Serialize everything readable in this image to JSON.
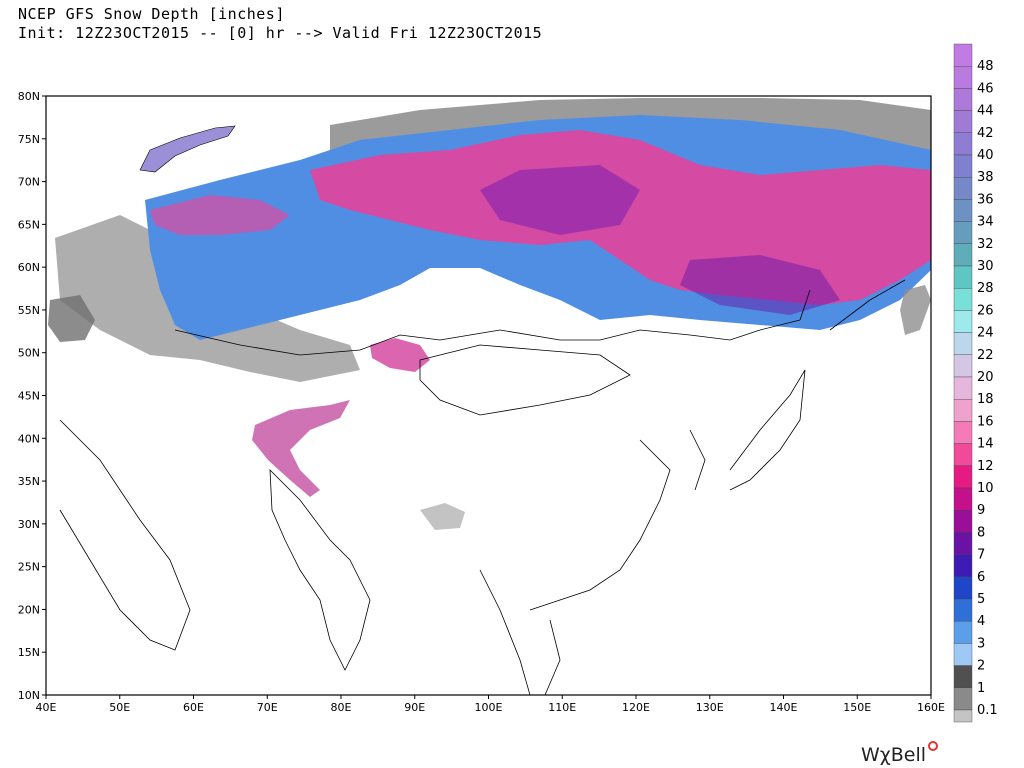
{
  "header": {
    "title": "NCEP GFS Snow Depth [inches]",
    "subtitle": "Init: 12Z23OCT2015 -- [0] hr --> Valid Fri 12Z23OCT2015"
  },
  "map": {
    "lon_range": [
      40,
      160
    ],
    "lat_range": [
      10,
      80
    ],
    "lat_ticks": [
      "80N",
      "75N",
      "70N",
      "65N",
      "60N",
      "55N",
      "50N",
      "45N",
      "40N",
      "35N",
      "30N",
      "25N",
      "20N",
      "15N",
      "10N"
    ],
    "lon_ticks": [
      "40E",
      "50E",
      "60E",
      "70E",
      "80E",
      "90E",
      "100E",
      "110E",
      "120E",
      "130E",
      "140E",
      "150E",
      "160E"
    ]
  },
  "colorbar": {
    "levels": [
      {
        "label": "48",
        "color": "#c17ce4"
      },
      {
        "label": "46",
        "color": "#b97bdf"
      },
      {
        "label": "44",
        "color": "#ae7ad9"
      },
      {
        "label": "42",
        "color": "#a07bd6"
      },
      {
        "label": "40",
        "color": "#8f7dd3"
      },
      {
        "label": "38",
        "color": "#7f80cf"
      },
      {
        "label": "36",
        "color": "#7688c8"
      },
      {
        "label": "34",
        "color": "#6d91c2"
      },
      {
        "label": "32",
        "color": "#669dbd"
      },
      {
        "label": "30",
        "color": "#5fadb9"
      },
      {
        "label": "28",
        "color": "#5fc7c3"
      },
      {
        "label": "26",
        "color": "#78dfd9"
      },
      {
        "label": "24",
        "color": "#9de9ec"
      },
      {
        "label": "22",
        "color": "#bcd7ec"
      },
      {
        "label": "20",
        "color": "#d4c7e6"
      },
      {
        "label": "18",
        "color": "#e6b7dc"
      },
      {
        "label": "16",
        "color": "#f0a2cf"
      },
      {
        "label": "14",
        "color": "#f47bb7"
      },
      {
        "label": "12",
        "color": "#f24a9b"
      },
      {
        "label": "10",
        "color": "#e51b83"
      },
      {
        "label": "9",
        "color": "#c4108a"
      },
      {
        "label": "8",
        "color": "#9a0e98"
      },
      {
        "label": "7",
        "color": "#6a12a4"
      },
      {
        "label": "6",
        "color": "#3d1bb4"
      },
      {
        "label": "5",
        "color": "#1f45c8"
      },
      {
        "label": "4",
        "color": "#2f6fd8"
      },
      {
        "label": "3",
        "color": "#5b9eea"
      },
      {
        "label": "2",
        "color": "#9fc9f5"
      },
      {
        "label": "1",
        "color": "#505050"
      },
      {
        "label": "0.1",
        "color": "#8a8a8a"
      }
    ],
    "bottom_color": "#c4c4c4"
  },
  "brand": "WχBell"
}
